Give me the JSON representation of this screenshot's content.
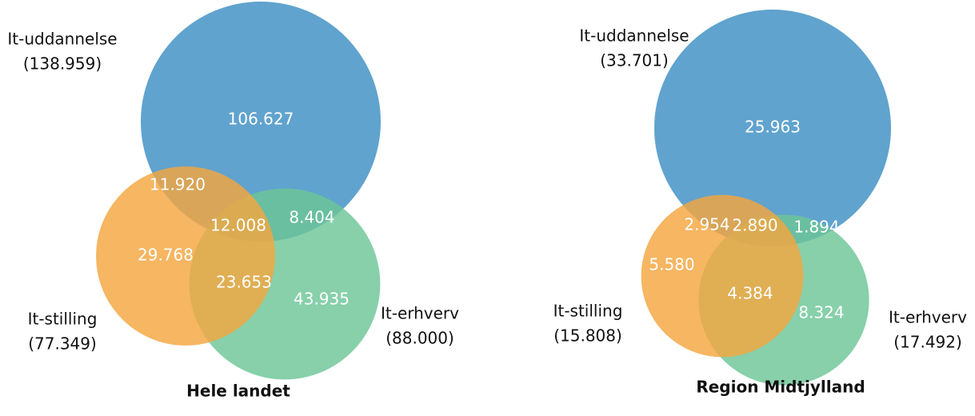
{
  "chart_data": [
    {
      "type": "venn",
      "title": "Hele landet",
      "series": [
        {
          "name": "It-uddannelse",
          "color": "#3d8fc3",
          "total": 138959,
          "total_label": "(138.959)"
        },
        {
          "name": "It-stilling",
          "color": "#f4a640",
          "total": 77349,
          "total_label": "(77.349)"
        },
        {
          "name": "It-erhverv",
          "color": "#6cc697",
          "total": 88000,
          "total_label": "(88.000)"
        }
      ],
      "values": [
        106627,
        29768,
        43935,
        11920,
        8404,
        23653,
        12008
      ],
      "value_labels": [
        "106.627",
        "29.768",
        "43.935",
        "11.920",
        "8.404",
        "23.653",
        "12.008"
      ]
    },
    {
      "type": "venn",
      "title": "Region Midtjylland",
      "series": [
        {
          "name": "It-uddannelse",
          "color": "#3d8fc3",
          "total": 33701,
          "total_label": "(33.701)"
        },
        {
          "name": "It-stilling",
          "color": "#f4a640",
          "total": 15808,
          "total_label": "(15.808)"
        },
        {
          "name": "It-erhverv",
          "color": "#6cc697",
          "total": 17492,
          "total_label": "(17.492)"
        }
      ],
      "values": [
        25963,
        5580,
        8324,
        2954,
        1894,
        4384,
        2890
      ],
      "value_labels": [
        "25.963",
        "5.580",
        "8.324",
        "2.954",
        "1.894",
        "4.384",
        "2.890"
      ]
    }
  ]
}
